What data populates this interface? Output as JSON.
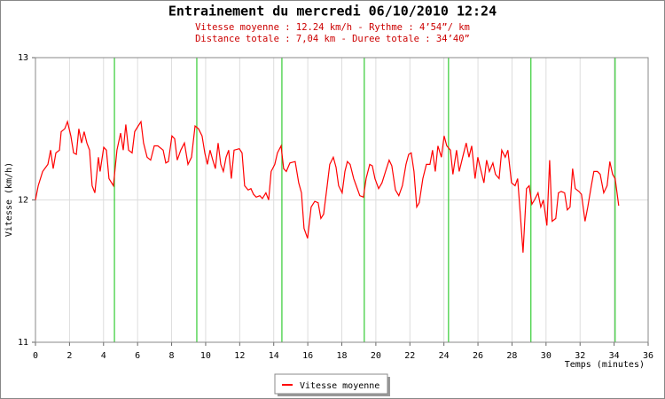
{
  "chart_data": {
    "type": "line",
    "title": "Entrainement du mercredi 06/10/2010 12:24",
    "subtitle_lines": [
      "Vitesse moyenne : 12.24 km/h - Rythme : 4’54”/ km",
      "Distance totale : 7,04 km - Duree totale : 34’40”"
    ],
    "x_label": "Temps (minutes)",
    "y_label": "Vitesse (km/h)",
    "xlim": [
      0,
      36
    ],
    "ylim": [
      11,
      13
    ],
    "xticks": [
      0,
      2,
      4,
      6,
      8,
      10,
      12,
      14,
      16,
      18,
      20,
      22,
      24,
      26,
      28,
      30,
      32,
      34,
      36
    ],
    "yticks": [
      11,
      12,
      13
    ],
    "grid": true,
    "markers": {
      "color": "#33cc33",
      "x": [
        4.64,
        9.48,
        14.48,
        19.32,
        24.27,
        29.11,
        34.06
      ]
    },
    "x": [
      0,
      0.16,
      0.42,
      0.73,
      0.89,
      1.04,
      1.2,
      1.41,
      1.51,
      1.72,
      1.88,
      2.08,
      2.24,
      2.4,
      2.55,
      2.71,
      2.86,
      3.02,
      3.18,
      3.33,
      3.49,
      3.7,
      3.8,
      4.01,
      4.17,
      4.32,
      4.58,
      4.79,
      5,
      5.16,
      5.31,
      5.47,
      5.68,
      5.83,
      6.04,
      6.2,
      6.35,
      6.56,
      6.77,
      6.98,
      7.19,
      7.5,
      7.66,
      7.81,
      8.02,
      8.18,
      8.33,
      8.54,
      8.75,
      8.96,
      9.17,
      9.38,
      9.58,
      9.79,
      9.95,
      10.1,
      10.26,
      10.42,
      10.57,
      10.73,
      10.89,
      11.04,
      11.2,
      11.35,
      11.51,
      11.67,
      11.98,
      12.14,
      12.29,
      12.5,
      12.66,
      12.81,
      12.97,
      13.18,
      13.33,
      13.54,
      13.7,
      13.85,
      14.06,
      14.22,
      14.43,
      14.58,
      14.74,
      14.95,
      15.26,
      15.47,
      15.63,
      15.78,
      15.99,
      16.2,
      16.41,
      16.61,
      16.77,
      16.93,
      17.14,
      17.29,
      17.5,
      17.66,
      17.81,
      18.02,
      18.18,
      18.33,
      18.49,
      18.7,
      18.85,
      19.06,
      19.27,
      19.43,
      19.64,
      19.79,
      19.95,
      20.16,
      20.36,
      20.57,
      20.78,
      20.94,
      21.15,
      21.35,
      21.56,
      21.77,
      21.93,
      22.08,
      22.24,
      22.4,
      22.55,
      22.76,
      22.97,
      23.18,
      23.33,
      23.49,
      23.65,
      23.85,
      24.01,
      24.17,
      24.38,
      24.53,
      24.74,
      24.9,
      25.1,
      25.31,
      25.47,
      25.63,
      25.83,
      25.99,
      26.15,
      26.35,
      26.51,
      26.67,
      26.88,
      27.03,
      27.24,
      27.4,
      27.6,
      27.76,
      27.97,
      28.18,
      28.33,
      28.49,
      28.65,
      28.85,
      29.01,
      29.17,
      29.32,
      29.53,
      29.69,
      29.84,
      30.05,
      30.21,
      30.36,
      30.57,
      30.73,
      30.89,
      31.09,
      31.25,
      31.41,
      31.56,
      31.72,
      31.93,
      32.08,
      32.29,
      32.45,
      32.66,
      32.81,
      33.02,
      33.18,
      33.39,
      33.59,
      33.75,
      33.91,
      34.06,
      34.27
    ],
    "series": [
      {
        "name": "Vitesse moyenne",
        "color": "#ff0000",
        "values": [
          12.0,
          12.1,
          12.2,
          12.25,
          12.35,
          12.22,
          12.33,
          12.35,
          12.48,
          12.5,
          12.55,
          12.45,
          12.33,
          12.32,
          12.5,
          12.4,
          12.48,
          12.4,
          12.35,
          12.1,
          12.05,
          12.3,
          12.2,
          12.37,
          12.35,
          12.15,
          12.1,
          12.35,
          12.47,
          12.35,
          12.53,
          12.35,
          12.33,
          12.48,
          12.52,
          12.55,
          12.4,
          12.3,
          12.28,
          12.38,
          12.38,
          12.35,
          12.26,
          12.27,
          12.45,
          12.43,
          12.28,
          12.35,
          12.4,
          12.25,
          12.3,
          12.52,
          12.5,
          12.45,
          12.33,
          12.25,
          12.35,
          12.28,
          12.22,
          12.4,
          12.25,
          12.2,
          12.3,
          12.35,
          12.15,
          12.35,
          12.36,
          12.33,
          12.1,
          12.07,
          12.08,
          12.04,
          12.02,
          12.03,
          12.01,
          12.05,
          12.0,
          12.2,
          12.25,
          12.33,
          12.38,
          12.22,
          12.2,
          12.26,
          12.27,
          12.12,
          12.05,
          11.8,
          11.73,
          11.95,
          11.99,
          11.98,
          11.87,
          11.9,
          12.1,
          12.25,
          12.3,
          12.23,
          12.1,
          12.05,
          12.2,
          12.27,
          12.25,
          12.15,
          12.1,
          12.03,
          12.02,
          12.15,
          12.25,
          12.24,
          12.15,
          12.08,
          12.12,
          12.2,
          12.28,
          12.24,
          12.07,
          12.03,
          12.1,
          12.25,
          12.32,
          12.33,
          12.2,
          11.95,
          11.98,
          12.15,
          12.25,
          12.25,
          12.35,
          12.2,
          12.38,
          12.3,
          12.45,
          12.38,
          12.35,
          12.18,
          12.35,
          12.2,
          12.3,
          12.4,
          12.3,
          12.38,
          12.15,
          12.3,
          12.22,
          12.12,
          12.28,
          12.2,
          12.26,
          12.18,
          12.15,
          12.35,
          12.3,
          12.35,
          12.12,
          12.1,
          12.15,
          11.9,
          11.63,
          12.08,
          12.1,
          11.97,
          12.0,
          12.05,
          11.95,
          12.0,
          11.82,
          12.28,
          11.85,
          11.87,
          12.05,
          12.06,
          12.05,
          11.93,
          11.95,
          12.22,
          12.08,
          12.06,
          12.04,
          11.85,
          11.95,
          12.1,
          12.2,
          12.2,
          12.18,
          12.05,
          12.1,
          12.27,
          12.18,
          12.15,
          11.96
        ]
      }
    ]
  }
}
